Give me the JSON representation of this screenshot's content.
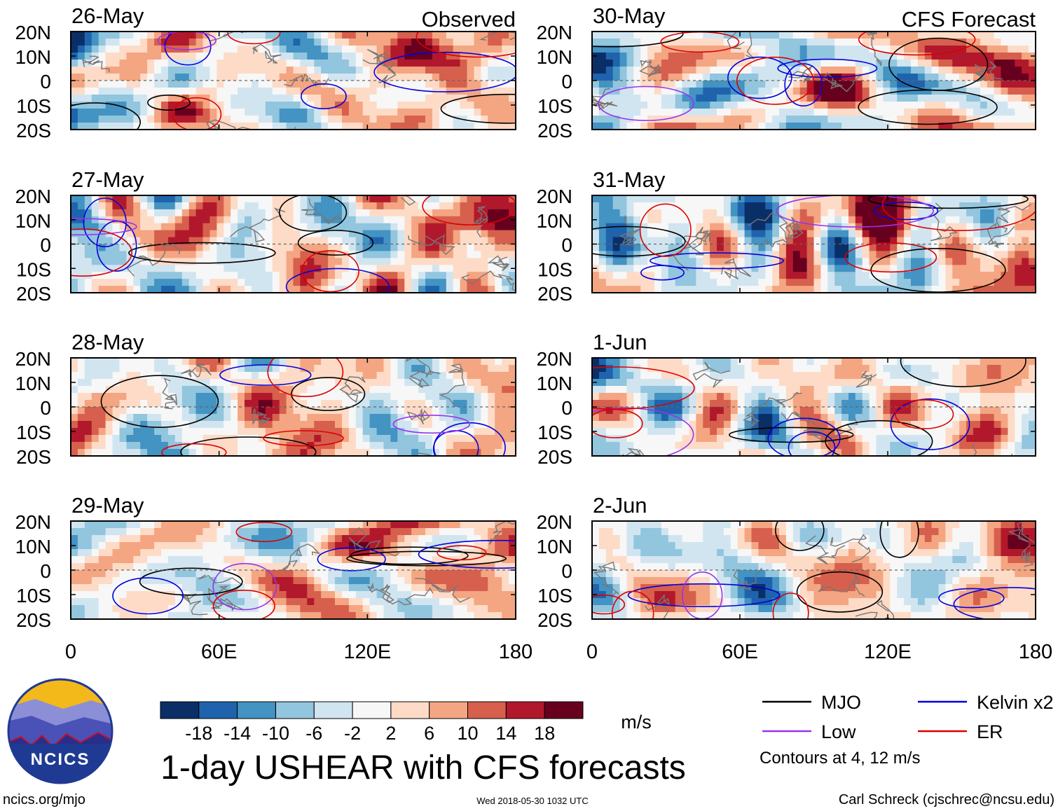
{
  "chart_data": {
    "type": "heatmap",
    "title": "1-day USHEAR with CFS forecasts",
    "variable": "USHEAR",
    "units": "m/s",
    "x_axis": {
      "range": [
        0,
        180
      ],
      "ticks": [
        0,
        60,
        120,
        180
      ],
      "tick_labels": [
        "0",
        "60E",
        "120E",
        "180"
      ]
    },
    "y_axis": {
      "range": [
        -20,
        20
      ],
      "ticks": [
        20,
        10,
        0,
        -10,
        -20
      ],
      "tick_labels": [
        "20N",
        "10N",
        "0",
        "10S",
        "20S"
      ]
    },
    "columns": [
      {
        "header": "Observed",
        "panels": [
          "26-May",
          "27-May",
          "28-May",
          "29-May"
        ]
      },
      {
        "header": "CFS Forecast",
        "panels": [
          "30-May",
          "31-May",
          "1-Jun",
          "2-Jun"
        ]
      }
    ],
    "colorbar": {
      "levels": [
        -18,
        -14,
        -10,
        -6,
        -2,
        2,
        6,
        10,
        14,
        18
      ],
      "labels": [
        "-18",
        "-14",
        "-10",
        "-6",
        "-2",
        "2",
        "6",
        "10",
        "14",
        "18"
      ],
      "colors": [
        "#0a2f66",
        "#1f63ad",
        "#4393c3",
        "#92c5de",
        "#d1e5f0",
        "#f7f7f7",
        "#fddbc7",
        "#f4a582",
        "#d6604d",
        "#b2182b",
        "#67001f"
      ]
    },
    "legend": [
      {
        "label": "MJO",
        "color": "#000000"
      },
      {
        "label": "Kelvin x2",
        "color": "#0000dd"
      },
      {
        "label": "Low",
        "color": "#9933ee"
      },
      {
        "label": "ER",
        "color": "#dd0000"
      }
    ],
    "contour_note": "Contours at 4, 12 m/s"
  },
  "footer": {
    "logo_text": "NCICS",
    "url": "ncics.org/mjo",
    "timestamp": "Wed 2018-05-30 1032 UTC",
    "credit": "Carl Schreck (cjschrec@ncsu.edu)"
  }
}
